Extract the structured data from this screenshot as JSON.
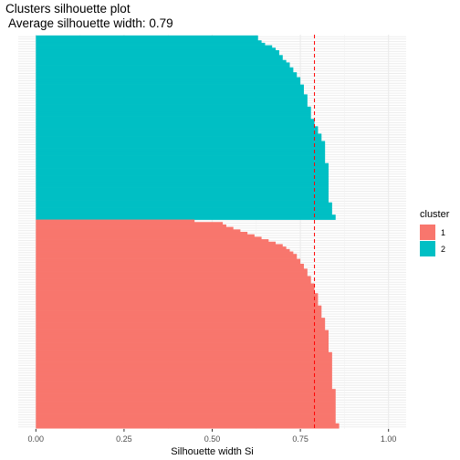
{
  "chart_data": {
    "type": "bar",
    "orientation": "horizontal",
    "title": "Clusters silhouette plot",
    "subtitle": " Average silhouette width: 0.79",
    "xlabel": "Silhouette width Si",
    "ylabel": "",
    "xlim": [
      -0.05,
      1.05
    ],
    "x_ticks": [
      0.0,
      0.25,
      0.5,
      0.75,
      1.0
    ],
    "x_tick_labels": [
      "0.00",
      "0.25",
      "0.50",
      "0.75",
      "1.00"
    ],
    "average_silhouette": 0.79,
    "average_line_color": "#ff0000",
    "grid": true,
    "legend": {
      "title": "cluster",
      "position": "right",
      "entries": [
        {
          "label": "1",
          "color": "#F8766D"
        },
        {
          "label": "2",
          "color": "#00BFC4"
        }
      ]
    },
    "series": [
      {
        "name": "2",
        "color": "#00BFC4",
        "values": [
          0.63,
          0.63,
          0.64,
          0.65,
          0.67,
          0.68,
          0.69,
          0.69,
          0.7,
          0.7,
          0.71,
          0.72,
          0.72,
          0.73,
          0.73,
          0.74,
          0.74,
          0.75,
          0.75,
          0.75,
          0.76,
          0.76,
          0.76,
          0.76,
          0.77,
          0.77,
          0.77,
          0.77,
          0.77,
          0.78,
          0.78,
          0.78,
          0.78,
          0.78,
          0.79,
          0.79,
          0.79,
          0.8,
          0.8,
          0.8,
          0.81,
          0.81,
          0.81,
          0.82,
          0.82,
          0.82,
          0.82,
          0.82,
          0.82,
          0.82,
          0.82,
          0.82,
          0.83,
          0.83,
          0.83,
          0.83,
          0.83,
          0.83,
          0.83,
          0.83,
          0.83,
          0.83,
          0.83,
          0.83,
          0.83,
          0.83,
          0.83,
          0.83,
          0.84,
          0.84,
          0.84,
          0.84,
          0.84,
          0.85,
          0.85
        ]
      },
      {
        "name": "1",
        "color": "#F8766D",
        "values": [
          0.45,
          0.53,
          0.54,
          0.56,
          0.58,
          0.6,
          0.62,
          0.64,
          0.66,
          0.68,
          0.7,
          0.71,
          0.72,
          0.73,
          0.74,
          0.74,
          0.75,
          0.75,
          0.76,
          0.76,
          0.77,
          0.77,
          0.77,
          0.78,
          0.78,
          0.78,
          0.79,
          0.79,
          0.79,
          0.79,
          0.8,
          0.8,
          0.8,
          0.8,
          0.8,
          0.81,
          0.81,
          0.81,
          0.81,
          0.81,
          0.82,
          0.82,
          0.82,
          0.82,
          0.82,
          0.83,
          0.83,
          0.83,
          0.83,
          0.83,
          0.83,
          0.83,
          0.83,
          0.83,
          0.84,
          0.84,
          0.84,
          0.84,
          0.84,
          0.84,
          0.84,
          0.84,
          0.84,
          0.84,
          0.84,
          0.84,
          0.84,
          0.84,
          0.84,
          0.85,
          0.85,
          0.85,
          0.85,
          0.85,
          0.85,
          0.85,
          0.85,
          0.85,
          0.85,
          0.85,
          0.85,
          0.85,
          0.85,
          0.86,
          0.86
        ]
      }
    ]
  }
}
